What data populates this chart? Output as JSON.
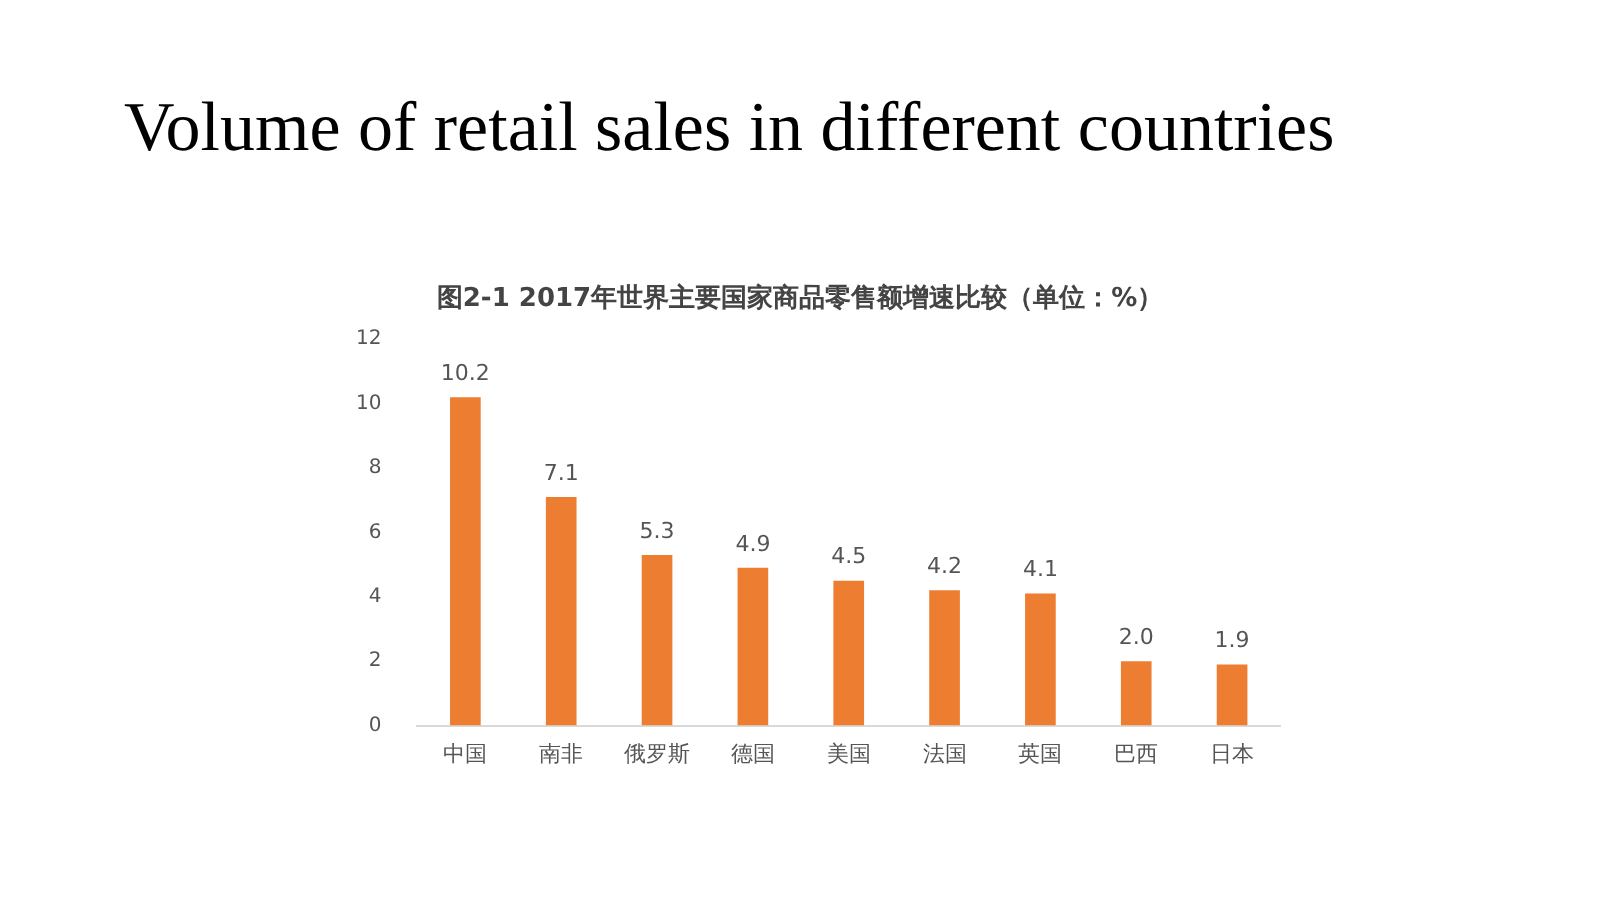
{
  "chart_data": {
    "type": "bar",
    "title": "Volume of retail sales in different countries",
    "subtitle": "图2-1 2017年世界主要国家商品零售额增速比较（单位：%）",
    "categories": [
      "中国",
      "南非",
      "俄罗斯",
      "德国",
      "美国",
      "法国",
      "英国",
      "巴西",
      "日本"
    ],
    "values": [
      10.2,
      7.1,
      5.3,
      4.9,
      4.5,
      4.2,
      4.1,
      2.0,
      1.9
    ],
    "value_labels": [
      "10.2",
      "7.1",
      "5.3",
      "4.9",
      "4.5",
      "4.2",
      "4.1",
      "2.0",
      "1.9"
    ],
    "color": "#ed7d31",
    "ylim": [
      0,
      12
    ],
    "yticks": [
      0,
      2,
      4,
      6,
      8,
      10,
      12
    ]
  }
}
